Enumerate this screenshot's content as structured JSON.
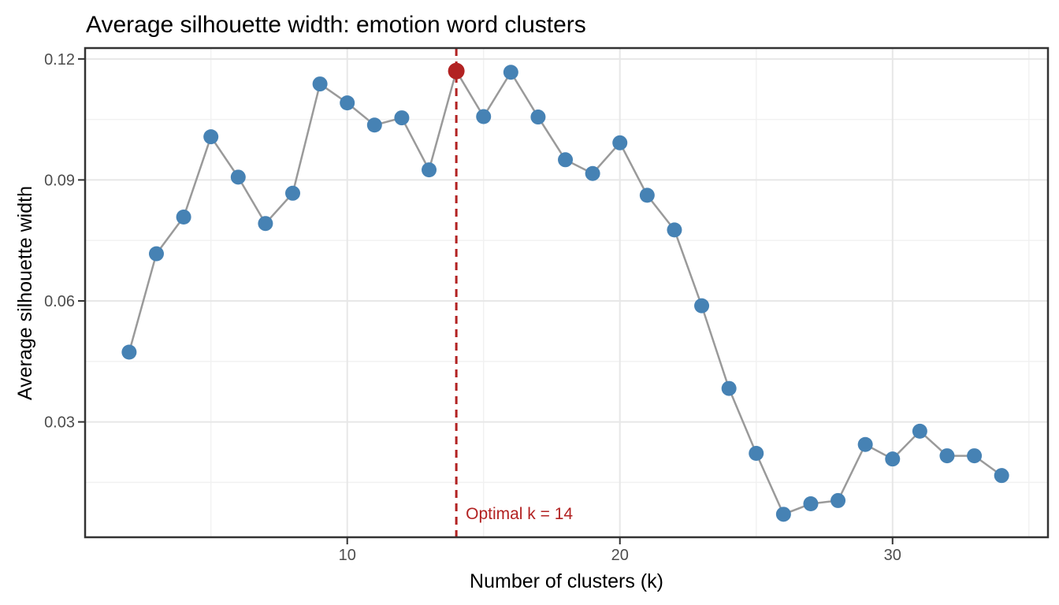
{
  "chart_data": {
    "type": "line",
    "title": "Average silhouette width: emotion word clusters",
    "xlabel": "Number of clusters (k)",
    "ylabel": "Average silhouette width",
    "annotation": "Optimal k = 14",
    "optimal_k": 14,
    "optimal_value": 0.117,
    "x": [
      2,
      3,
      4,
      5,
      6,
      7,
      8,
      9,
      10,
      11,
      12,
      13,
      14,
      15,
      16,
      17,
      18,
      19,
      20,
      21,
      22,
      23,
      24,
      25,
      26,
      27,
      28,
      29,
      30,
      31,
      32,
      33,
      34
    ],
    "y": [
      0.0473,
      0.0717,
      0.0808,
      0.1007,
      0.0907,
      0.0792,
      0.0867,
      0.1138,
      0.1091,
      0.1036,
      0.1054,
      0.0925,
      0.117,
      0.1057,
      0.1167,
      0.1056,
      0.095,
      0.0916,
      0.0992,
      0.0862,
      0.0776,
      0.0588,
      0.0383,
      0.0222,
      0.0071,
      0.0097,
      0.0105,
      0.0244,
      0.0208,
      0.0277,
      0.0216,
      0.0216,
      0.0167
    ],
    "x_major_ticks": [
      10,
      20,
      30
    ],
    "x_minor_ticks": [
      5,
      15,
      25,
      35
    ],
    "x_tick_labels": [
      "10",
      "20",
      "30"
    ],
    "y_major_ticks": [
      0.03,
      0.06,
      0.09,
      0.12
    ],
    "y_minor_ticks": [
      0.015,
      0.045,
      0.075,
      0.105
    ],
    "y_tick_labels": [
      "0.03",
      "0.06",
      "0.09",
      "0.12"
    ],
    "xlim": [
      0.385,
      35.7
    ],
    "ylim": [
      0.0014,
      0.1227
    ],
    "grid": true,
    "legend": false,
    "colors": {
      "point": "#4682B4",
      "optimal_point": "#B22222",
      "line": "#9A9A9A",
      "dashed_line": "#B22222",
      "annotation": "#B22222",
      "grid_major": "#E7E7E7",
      "grid_minor": "#F1F1F1",
      "panel_border": "#333333",
      "tick": "#333333",
      "tick_label": "#4D4D4D",
      "background": "#FFFFFF"
    }
  }
}
